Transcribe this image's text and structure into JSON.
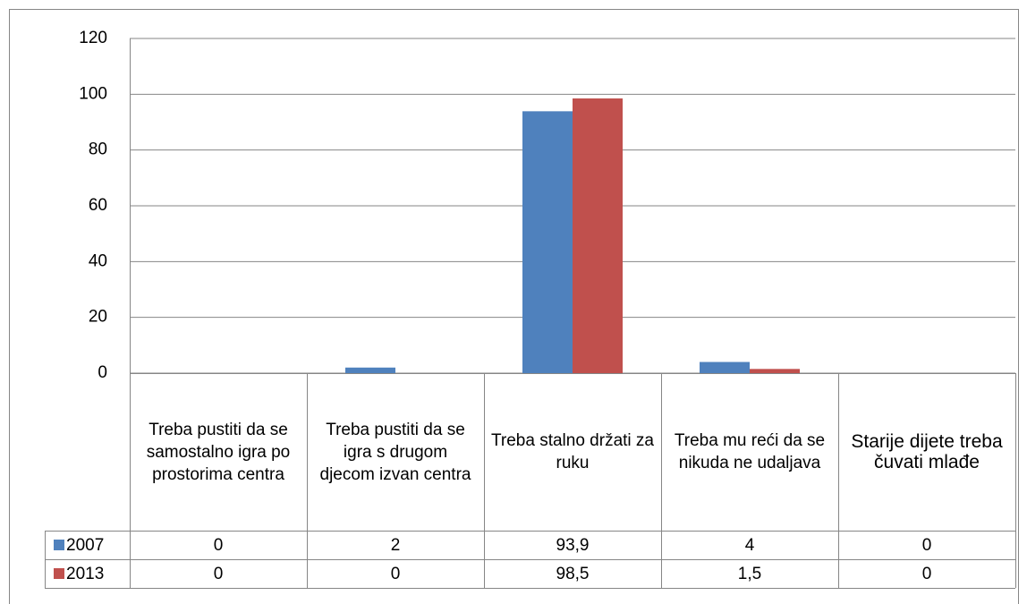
{
  "chart_data": {
    "type": "bar",
    "categories": [
      "Treba pustiti da se samostalno igra po prostorima centra",
      "Treba pustiti da se igra s drugom djecom izvan centra",
      "Treba stalno držati za ruku",
      "Treba mu reći da se nikuda ne udaljava",
      "Starije dijete treba čuvati mlađe"
    ],
    "series": [
      {
        "name": "2007",
        "color": "#4f81bd",
        "values": [
          0,
          2,
          93.9,
          4,
          0
        ],
        "value_labels": [
          "0",
          "2",
          "93,9",
          "4",
          "0"
        ]
      },
      {
        "name": "2013",
        "color": "#c0504d",
        "values": [
          0,
          0,
          98.5,
          1.5,
          0
        ],
        "value_labels": [
          "0",
          "0",
          "98,5",
          "1,5",
          "0"
        ]
      }
    ],
    "ylim": [
      0,
      120
    ],
    "yticks": [
      0,
      20,
      40,
      60,
      80,
      100,
      120
    ],
    "grid": true
  }
}
